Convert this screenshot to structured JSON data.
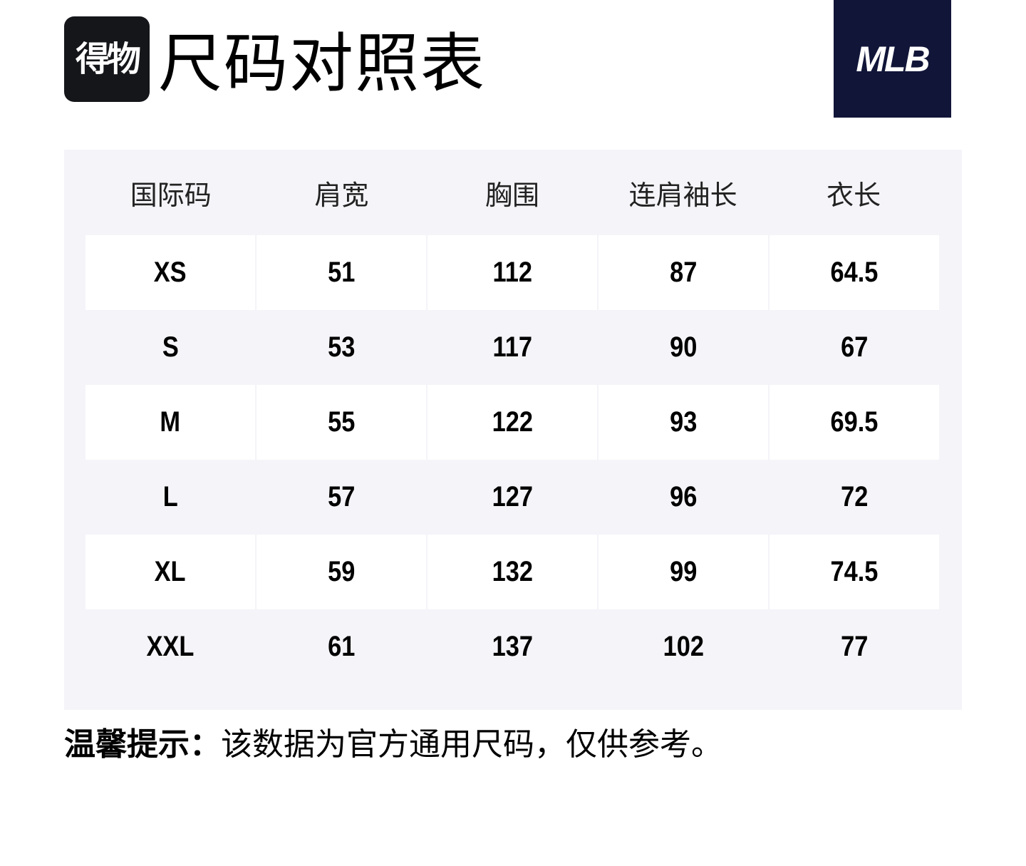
{
  "app_logo": {
    "text": "得物"
  },
  "page_title": "尺码对照表",
  "brand_logo": {
    "text": "MLB",
    "bg_color": "#111538"
  },
  "table": {
    "headers": [
      "国际码",
      "肩宽",
      "胸围",
      "连肩袖长",
      "衣长"
    ],
    "rows": [
      [
        "XS",
        "51",
        "112",
        "87",
        "64.5"
      ],
      [
        "S",
        "53",
        "117",
        "90",
        "67"
      ],
      [
        "M",
        "55",
        "122",
        "93",
        "69.5"
      ],
      [
        "L",
        "57",
        "127",
        "96",
        "72"
      ],
      [
        "XL",
        "59",
        "132",
        "99",
        "74.5"
      ],
      [
        "XXL",
        "61",
        "137",
        "102",
        "77"
      ]
    ]
  },
  "tip": {
    "label": "温馨提示：",
    "text": "该数据为官方通用尺码，仅供参考。"
  }
}
